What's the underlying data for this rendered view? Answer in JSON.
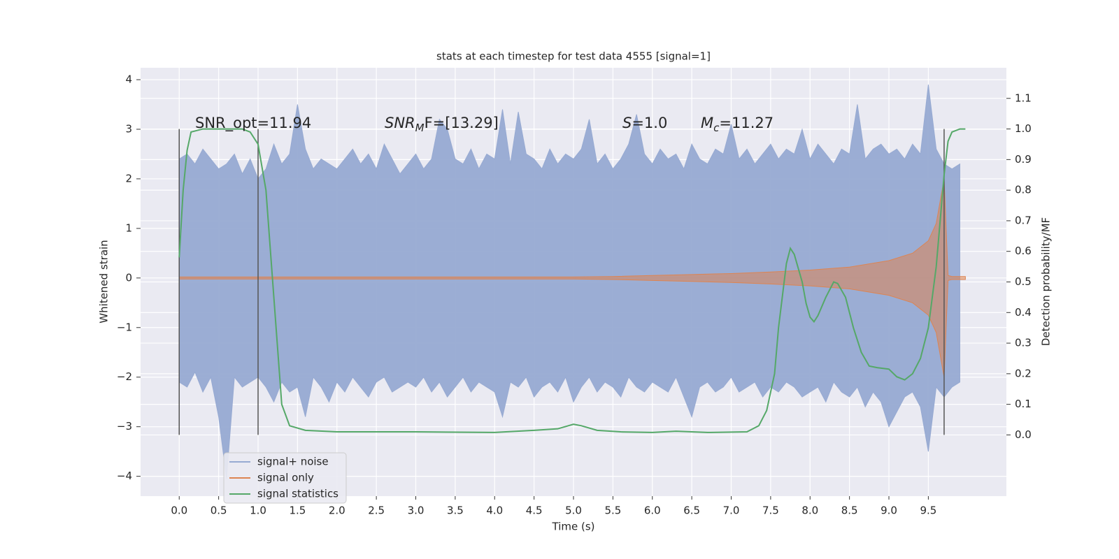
{
  "chart_data": {
    "type": "line",
    "title": "stats at each timestep for test data 4555 [signal=1]",
    "x_label": "Time (s)",
    "y_label": "Whitened strain",
    "y2_label": "Detection probability/MF",
    "xlim": [
      -0.49,
      10.49
    ],
    "ylim": [
      -4.4,
      4.24
    ],
    "y2lim": [
      -0.2,
      1.2
    ],
    "xticks": [
      {
        "value": 0,
        "label": "0.0"
      },
      0.5,
      {
        "value": 1,
        "label": "1.0"
      },
      1.5,
      {
        "value": 2,
        "label": "2.0"
      },
      2.5,
      {
        "value": 3,
        "label": "3.0"
      },
      3.5,
      {
        "value": 4,
        "label": "4.0"
      },
      4.5,
      {
        "value": 5,
        "label": "5.0"
      },
      5.5,
      {
        "value": 6,
        "label": "6.0"
      },
      6.5,
      {
        "value": 7,
        "label": "7.0"
      },
      7.5,
      {
        "value": 8,
        "label": "8.0"
      },
      8.5,
      {
        "value": 9,
        "label": "9.0"
      },
      9.5
    ],
    "yticks": [
      {
        "value": -4,
        "label": "−4"
      },
      {
        "value": -3,
        "label": "−3"
      },
      {
        "value": -2,
        "label": "−2"
      },
      {
        "value": -1,
        "label": "−1"
      },
      0,
      1,
      2,
      3,
      4
    ],
    "y2ticks": [
      {
        "value": 0,
        "label": "0.0"
      },
      0.1,
      0.2,
      0.3,
      0.4,
      0.5,
      0.6,
      0.7,
      0.8,
      0.9,
      {
        "value": 1,
        "label": "1.0"
      },
      1.1
    ],
    "grid": true,
    "legend": "lower left",
    "markers": [
      0,
      1,
      9.7
    ],
    "marker_color": "#555555",
    "annotations": [
      {
        "text": "SNR_opt=11.94"
      },
      {
        "base": "SNR",
        "sub": "M",
        "tail": "F=[13.29]"
      },
      {
        "base": "S",
        "tail": "=1.0"
      },
      {
        "base": "M",
        "sub": "c",
        "tail": "=11.27"
      }
    ],
    "noise": {
      "name": "signal+ noise",
      "color": "#97aad2",
      "x": [
        0.0,
        0.1,
        0.2,
        0.3,
        0.4,
        0.5,
        0.6,
        0.7,
        0.8,
        0.9,
        1.0,
        1.1,
        1.2,
        1.3,
        1.4,
        1.5,
        1.6,
        1.7,
        1.8,
        1.9,
        2.0,
        2.1,
        2.2,
        2.3,
        2.4,
        2.5,
        2.6,
        2.7,
        2.8,
        2.9,
        3.0,
        3.1,
        3.2,
        3.3,
        3.4,
        3.5,
        3.6,
        3.7,
        3.8,
        3.9,
        4.0,
        4.1,
        4.2,
        4.3,
        4.4,
        4.5,
        4.6,
        4.7,
        4.8,
        4.9,
        5.0,
        5.1,
        5.2,
        5.3,
        5.4,
        5.5,
        5.6,
        5.7,
        5.8,
        5.9,
        6.0,
        6.1,
        6.2,
        6.3,
        6.4,
        6.5,
        6.6,
        6.7,
        6.8,
        6.9,
        7.0,
        7.1,
        7.2,
        7.3,
        7.4,
        7.5,
        7.6,
        7.7,
        7.8,
        7.9,
        8.0,
        8.1,
        8.2,
        8.3,
        8.4,
        8.5,
        8.6,
        8.7,
        8.8,
        8.9,
        9.0,
        9.1,
        9.2,
        9.3,
        9.4,
        9.5,
        9.6,
        9.7,
        9.8,
        9.9
      ],
      "high": [
        2.4,
        2.5,
        2.3,
        2.6,
        2.4,
        2.2,
        2.3,
        2.5,
        2.1,
        2.4,
        2.0,
        2.2,
        2.7,
        2.3,
        2.5,
        3.5,
        2.6,
        2.2,
        2.4,
        2.3,
        2.2,
        2.4,
        2.6,
        2.3,
        2.5,
        2.2,
        2.7,
        2.4,
        2.1,
        2.3,
        2.5,
        2.2,
        2.4,
        3.2,
        3.0,
        2.4,
        2.3,
        2.6,
        2.2,
        2.5,
        2.4,
        3.4,
        2.3,
        3.35,
        2.5,
        2.4,
        2.2,
        2.6,
        2.3,
        2.5,
        2.4,
        2.6,
        3.2,
        2.3,
        2.5,
        2.2,
        2.4,
        2.7,
        3.3,
        2.5,
        2.3,
        2.6,
        2.4,
        2.5,
        2.2,
        2.7,
        2.4,
        2.3,
        2.6,
        2.5,
        3.1,
        2.4,
        2.6,
        2.3,
        2.5,
        2.7,
        2.4,
        2.6,
        2.5,
        3.0,
        2.4,
        2.7,
        2.5,
        2.3,
        2.6,
        2.5,
        3.5,
        2.4,
        2.6,
        2.7,
        2.5,
        2.6,
        2.4,
        2.7,
        2.5,
        3.9,
        2.6,
        2.3,
        2.2,
        2.3
      ],
      "low": [
        -2.1,
        -2.2,
        -1.9,
        -2.3,
        -2.0,
        -2.8,
        -4.05,
        -2.0,
        -2.2,
        -2.1,
        -2.0,
        -2.2,
        -2.5,
        -2.1,
        -2.3,
        -2.2,
        -2.8,
        -2.0,
        -2.2,
        -2.5,
        -2.1,
        -2.3,
        -2.0,
        -2.2,
        -2.4,
        -2.1,
        -2.0,
        -2.3,
        -2.2,
        -2.1,
        -2.2,
        -2.0,
        -2.3,
        -2.1,
        -2.4,
        -2.2,
        -2.0,
        -2.3,
        -2.1,
        -2.2,
        -2.3,
        -2.8,
        -2.1,
        -2.2,
        -2.0,
        -2.4,
        -2.2,
        -2.1,
        -2.3,
        -2.0,
        -2.5,
        -2.2,
        -2.0,
        -2.3,
        -2.1,
        -2.2,
        -2.4,
        -2.0,
        -2.2,
        -2.3,
        -2.1,
        -2.2,
        -2.3,
        -2.0,
        -2.4,
        -2.8,
        -2.2,
        -2.1,
        -2.3,
        -2.2,
        -2.0,
        -2.3,
        -2.2,
        -2.1,
        -2.4,
        -2.2,
        -2.3,
        -2.1,
        -2.2,
        -2.4,
        -2.3,
        -2.2,
        -2.5,
        -2.1,
        -2.3,
        -2.4,
        -2.2,
        -2.6,
        -2.3,
        -2.5,
        -3.0,
        -2.7,
        -2.4,
        -2.3,
        -2.6,
        -3.5,
        -2.2,
        -2.4,
        -2.2,
        -2.1
      ]
    },
    "signal": {
      "name": "signal only",
      "color": "#dd8452",
      "x": [
        0.0,
        2.5,
        5.0,
        5.5,
        6.0,
        6.5,
        7.0,
        7.5,
        8.0,
        8.5,
        9.0,
        9.3,
        9.5,
        9.6,
        9.7,
        9.75,
        9.8,
        9.97
      ],
      "amplitude": [
        0.02,
        0.02,
        0.02,
        0.03,
        0.05,
        0.07,
        0.09,
        0.12,
        0.16,
        0.22,
        0.35,
        0.5,
        0.75,
        1.1,
        2.0,
        0.05,
        0.03,
        0.03
      ]
    },
    "statistics": {
      "name": "signal statistics",
      "color": "#55a868",
      "axis": "y2",
      "x": [
        0.0,
        0.05,
        0.1,
        0.15,
        0.3,
        0.8,
        0.9,
        1.0,
        1.1,
        1.2,
        1.3,
        1.4,
        1.6,
        2.0,
        2.5,
        3.0,
        4.0,
        4.5,
        4.8,
        5.0,
        5.1,
        5.3,
        5.6,
        6.0,
        6.3,
        6.7,
        7.2,
        7.35,
        7.45,
        7.55,
        7.6,
        7.7,
        7.75,
        7.8,
        7.9,
        7.95,
        8.0,
        8.05,
        8.1,
        8.2,
        8.3,
        8.35,
        8.45,
        8.55,
        8.65,
        8.75,
        8.85,
        9.0,
        9.1,
        9.2,
        9.3,
        9.4,
        9.5,
        9.55,
        9.6,
        9.7,
        9.75,
        9.8,
        9.9,
        9.97
      ],
      "values": [
        0.58,
        0.8,
        0.93,
        0.99,
        1.0,
        1.0,
        0.99,
        0.95,
        0.8,
        0.45,
        0.1,
        0.03,
        0.015,
        0.01,
        0.01,
        0.01,
        0.008,
        0.015,
        0.02,
        0.035,
        0.03,
        0.015,
        0.01,
        0.008,
        0.012,
        0.008,
        0.01,
        0.03,
        0.08,
        0.2,
        0.35,
        0.56,
        0.61,
        0.59,
        0.5,
        0.43,
        0.385,
        0.37,
        0.39,
        0.45,
        0.5,
        0.495,
        0.45,
        0.35,
        0.27,
        0.225,
        0.22,
        0.215,
        0.19,
        0.18,
        0.2,
        0.25,
        0.35,
        0.45,
        0.55,
        0.85,
        0.96,
        0.99,
        1.0,
        1.0
      ]
    }
  }
}
